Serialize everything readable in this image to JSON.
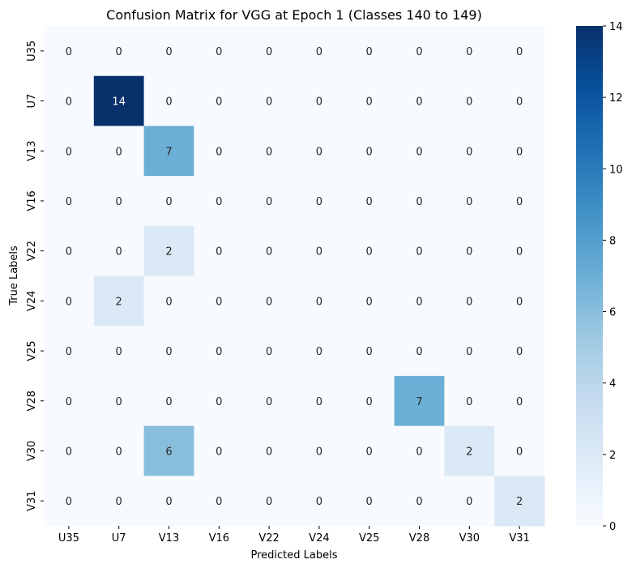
{
  "chart_data": {
    "type": "heatmap",
    "title": "Confusion Matrix for VGG at Epoch 1 (Classes 140 to 149)",
    "xlabel": "Predicted Labels",
    "ylabel": "True Labels",
    "x_categories": [
      "U35",
      "U7",
      "V13",
      "V16",
      "V22",
      "V24",
      "V25",
      "V28",
      "V30",
      "V31"
    ],
    "y_categories": [
      "U35",
      "U7",
      "V13",
      "V16",
      "V22",
      "V24",
      "V25",
      "V28",
      "V30",
      "V31"
    ],
    "values": [
      [
        0,
        0,
        0,
        0,
        0,
        0,
        0,
        0,
        0,
        0
      ],
      [
        0,
        14,
        0,
        0,
        0,
        0,
        0,
        0,
        0,
        0
      ],
      [
        0,
        0,
        7,
        0,
        0,
        0,
        0,
        0,
        0,
        0
      ],
      [
        0,
        0,
        0,
        0,
        0,
        0,
        0,
        0,
        0,
        0
      ],
      [
        0,
        0,
        2,
        0,
        0,
        0,
        0,
        0,
        0,
        0
      ],
      [
        0,
        2,
        0,
        0,
        0,
        0,
        0,
        0,
        0,
        0
      ],
      [
        0,
        0,
        0,
        0,
        0,
        0,
        0,
        0,
        0,
        0
      ],
      [
        0,
        0,
        0,
        0,
        0,
        0,
        0,
        7,
        0,
        0
      ],
      [
        0,
        0,
        6,
        0,
        0,
        0,
        0,
        0,
        2,
        0
      ],
      [
        0,
        0,
        0,
        0,
        0,
        0,
        0,
        0,
        0,
        2
      ]
    ],
    "colormap": "Blues",
    "vmin": 0,
    "vmax": 14,
    "colorbar_ticks": [
      0,
      2,
      4,
      6,
      8,
      10,
      12,
      14
    ]
  }
}
